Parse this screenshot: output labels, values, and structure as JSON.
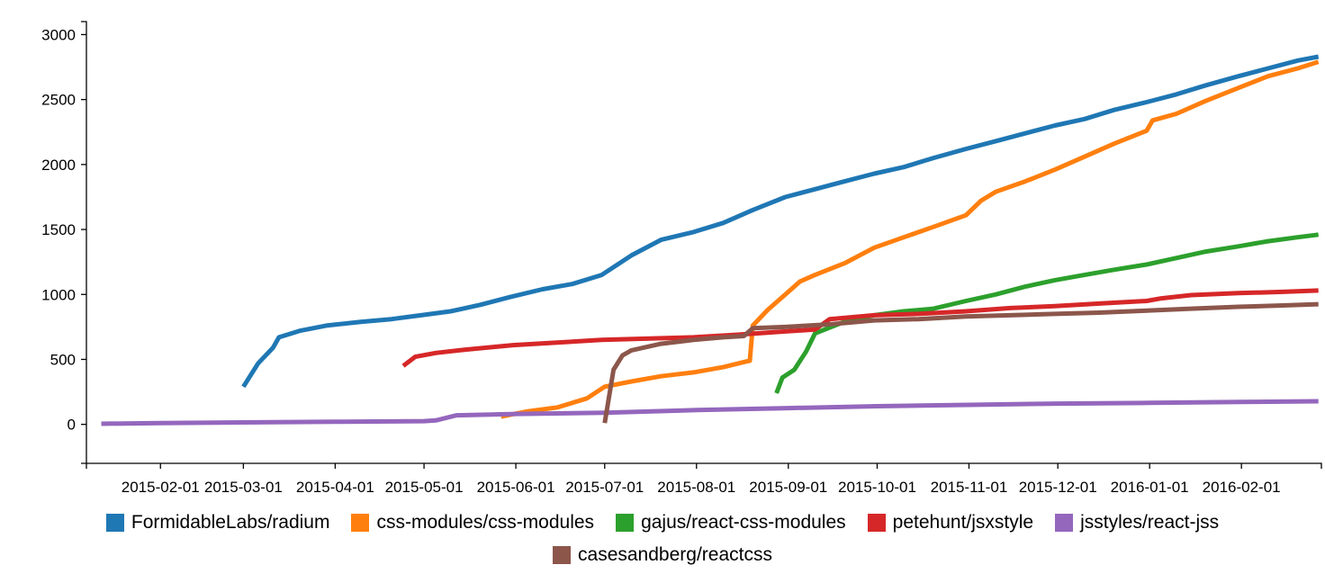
{
  "chart_data": {
    "type": "line",
    "title": "",
    "xlabel": "",
    "ylabel": "",
    "x_type": "date",
    "xlim": [
      "2015-01-07",
      "2016-02-28"
    ],
    "ylim": [
      -300,
      3100
    ],
    "grid": false,
    "legend_position": "bottom",
    "x_ticks": [
      "2015-02-01",
      "2015-03-01",
      "2015-04-01",
      "2015-05-01",
      "2015-06-01",
      "2015-07-01",
      "2015-08-01",
      "2015-09-01",
      "2015-10-01",
      "2015-11-01",
      "2015-12-01",
      "2016-01-01",
      "2016-02-01"
    ],
    "y_ticks": [
      0,
      500,
      1000,
      1500,
      2000,
      2500,
      3000
    ],
    "series": [
      {
        "name": "FormidableLabs/radium",
        "color": "#1f77b4",
        "points": [
          [
            "2015-03-01",
            290
          ],
          [
            "2015-03-06",
            470
          ],
          [
            "2015-03-11",
            590
          ],
          [
            "2015-03-13",
            670
          ],
          [
            "2015-03-20",
            720
          ],
          [
            "2015-03-29",
            760
          ],
          [
            "2015-04-10",
            790
          ],
          [
            "2015-04-20",
            810
          ],
          [
            "2015-04-30",
            840
          ],
          [
            "2015-05-10",
            870
          ],
          [
            "2015-05-20",
            920
          ],
          [
            "2015-05-30",
            980
          ],
          [
            "2015-06-10",
            1040
          ],
          [
            "2015-06-20",
            1080
          ],
          [
            "2015-06-30",
            1150
          ],
          [
            "2015-07-10",
            1300
          ],
          [
            "2015-07-20",
            1420
          ],
          [
            "2015-07-31",
            1480
          ],
          [
            "2015-08-10",
            1550
          ],
          [
            "2015-08-20",
            1650
          ],
          [
            "2015-08-31",
            1750
          ],
          [
            "2015-09-10",
            1810
          ],
          [
            "2015-09-20",
            1870
          ],
          [
            "2015-09-30",
            1930
          ],
          [
            "2015-10-10",
            1980
          ],
          [
            "2015-10-20",
            2050
          ],
          [
            "2015-10-31",
            2120
          ],
          [
            "2015-11-10",
            2180
          ],
          [
            "2015-11-20",
            2240
          ],
          [
            "2015-11-30",
            2300
          ],
          [
            "2015-12-10",
            2350
          ],
          [
            "2015-12-20",
            2420
          ],
          [
            "2015-12-31",
            2480
          ],
          [
            "2016-01-10",
            2540
          ],
          [
            "2016-01-20",
            2610
          ],
          [
            "2016-01-31",
            2680
          ],
          [
            "2016-02-10",
            2740
          ],
          [
            "2016-02-20",
            2800
          ],
          [
            "2016-02-27",
            2830
          ]
        ]
      },
      {
        "name": "css-modules/css-modules",
        "color": "#ff7f0e",
        "points": [
          [
            "2015-05-27",
            60
          ],
          [
            "2015-06-05",
            100
          ],
          [
            "2015-06-15",
            130
          ],
          [
            "2015-06-25",
            200
          ],
          [
            "2015-07-01",
            290
          ],
          [
            "2015-07-10",
            330
          ],
          [
            "2015-07-20",
            370
          ],
          [
            "2015-07-31",
            400
          ],
          [
            "2015-08-10",
            440
          ],
          [
            "2015-08-17",
            480
          ],
          [
            "2015-08-19",
            490
          ],
          [
            "2015-08-20",
            760
          ],
          [
            "2015-08-25",
            880
          ],
          [
            "2015-08-31",
            1000
          ],
          [
            "2015-09-05",
            1100
          ],
          [
            "2015-09-10",
            1150
          ],
          [
            "2015-09-20",
            1240
          ],
          [
            "2015-09-30",
            1360
          ],
          [
            "2015-10-10",
            1440
          ],
          [
            "2015-10-20",
            1520
          ],
          [
            "2015-10-31",
            1610
          ],
          [
            "2015-11-05",
            1720
          ],
          [
            "2015-11-10",
            1790
          ],
          [
            "2015-11-20",
            1870
          ],
          [
            "2015-11-30",
            1960
          ],
          [
            "2015-12-10",
            2060
          ],
          [
            "2015-12-20",
            2160
          ],
          [
            "2015-12-31",
            2260
          ],
          [
            "2016-01-02",
            2340
          ],
          [
            "2016-01-10",
            2390
          ],
          [
            "2016-01-20",
            2490
          ],
          [
            "2016-01-31",
            2590
          ],
          [
            "2016-02-10",
            2680
          ],
          [
            "2016-02-20",
            2740
          ],
          [
            "2016-02-27",
            2790
          ]
        ]
      },
      {
        "name": "gajus/react-css-modules",
        "color": "#2ca02c",
        "points": [
          [
            "2015-08-28",
            240
          ],
          [
            "2015-08-30",
            360
          ],
          [
            "2015-09-03",
            420
          ],
          [
            "2015-09-07",
            560
          ],
          [
            "2015-09-10",
            700
          ],
          [
            "2015-09-20",
            790
          ],
          [
            "2015-09-30",
            840
          ],
          [
            "2015-10-10",
            870
          ],
          [
            "2015-10-20",
            890
          ],
          [
            "2015-10-31",
            950
          ],
          [
            "2015-11-10",
            1000
          ],
          [
            "2015-11-20",
            1060
          ],
          [
            "2015-11-30",
            1110
          ],
          [
            "2015-12-10",
            1150
          ],
          [
            "2015-12-20",
            1190
          ],
          [
            "2015-12-31",
            1230
          ],
          [
            "2016-01-10",
            1280
          ],
          [
            "2016-01-20",
            1330
          ],
          [
            "2016-01-31",
            1370
          ],
          [
            "2016-02-10",
            1410
          ],
          [
            "2016-02-20",
            1440
          ],
          [
            "2016-02-27",
            1460
          ]
        ]
      },
      {
        "name": "petehunt/jsxstyle",
        "color": "#d62728",
        "points": [
          [
            "2015-04-24",
            450
          ],
          [
            "2015-04-28",
            520
          ],
          [
            "2015-05-05",
            550
          ],
          [
            "2015-05-15",
            575
          ],
          [
            "2015-05-31",
            610
          ],
          [
            "2015-06-15",
            630
          ],
          [
            "2015-06-30",
            650
          ],
          [
            "2015-07-15",
            660
          ],
          [
            "2015-07-31",
            670
          ],
          [
            "2015-08-15",
            690
          ],
          [
            "2015-08-31",
            715
          ],
          [
            "2015-09-10",
            730
          ],
          [
            "2015-09-15",
            810
          ],
          [
            "2015-09-30",
            840
          ],
          [
            "2015-10-15",
            850
          ],
          [
            "2015-10-31",
            870
          ],
          [
            "2015-11-15",
            895
          ],
          [
            "2015-11-30",
            910
          ],
          [
            "2015-12-15",
            930
          ],
          [
            "2015-12-31",
            950
          ],
          [
            "2016-01-05",
            970
          ],
          [
            "2016-01-15",
            995
          ],
          [
            "2016-01-31",
            1010
          ],
          [
            "2016-02-15",
            1020
          ],
          [
            "2016-02-27",
            1030
          ]
        ]
      },
      {
        "name": "jsstyles/react-jss",
        "color": "#9467bd",
        "points": [
          [
            "2015-01-12",
            5
          ],
          [
            "2015-02-01",
            10
          ],
          [
            "2015-03-01",
            15
          ],
          [
            "2015-04-01",
            20
          ],
          [
            "2015-05-01",
            25
          ],
          [
            "2015-05-05",
            30
          ],
          [
            "2015-05-12",
            70
          ],
          [
            "2015-06-01",
            80
          ],
          [
            "2015-07-01",
            90
          ],
          [
            "2015-08-01",
            110
          ],
          [
            "2015-09-01",
            125
          ],
          [
            "2015-10-01",
            140
          ],
          [
            "2015-11-01",
            150
          ],
          [
            "2015-12-01",
            160
          ],
          [
            "2016-01-01",
            165
          ],
          [
            "2016-02-01",
            172
          ],
          [
            "2016-02-27",
            178
          ]
        ]
      },
      {
        "name": "casesandberg/reactcss",
        "color": "#8c564b",
        "points": [
          [
            "2015-07-01",
            10
          ],
          [
            "2015-07-04",
            420
          ],
          [
            "2015-07-07",
            530
          ],
          [
            "2015-07-10",
            570
          ],
          [
            "2015-07-20",
            620
          ],
          [
            "2015-07-31",
            650
          ],
          [
            "2015-08-10",
            670
          ],
          [
            "2015-08-17",
            680
          ],
          [
            "2015-08-20",
            740
          ],
          [
            "2015-08-31",
            750
          ],
          [
            "2015-09-15",
            770
          ],
          [
            "2015-09-30",
            800
          ],
          [
            "2015-10-15",
            810
          ],
          [
            "2015-10-31",
            830
          ],
          [
            "2015-11-15",
            840
          ],
          [
            "2015-11-30",
            850
          ],
          [
            "2015-12-15",
            860
          ],
          [
            "2015-12-31",
            875
          ],
          [
            "2016-01-15",
            890
          ],
          [
            "2016-01-31",
            905
          ],
          [
            "2016-02-15",
            915
          ],
          [
            "2016-02-27",
            925
          ]
        ]
      }
    ]
  }
}
